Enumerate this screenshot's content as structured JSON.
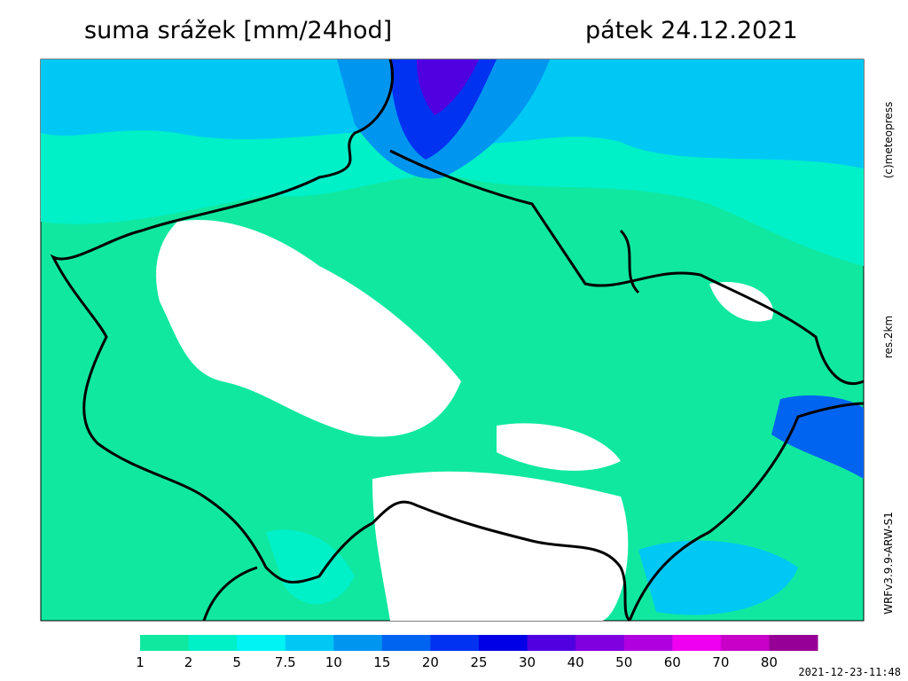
{
  "header": {
    "title": "suma srážek [mm/24hod]",
    "date": "pátek 24.12.2021"
  },
  "side": {
    "copyright": "(c)meteopress",
    "resolution": "res.2km",
    "model": "WRFv3.9.9-ARW-S1"
  },
  "legend": {
    "ticks": [
      1,
      2,
      5,
      7.5,
      10,
      15,
      20,
      25,
      30,
      40,
      50,
      60,
      70,
      80
    ],
    "colors": [
      "#10e8a0",
      "#00f0c8",
      "#00f4f4",
      "#00c8f4",
      "#0096f0",
      "#0064f0",
      "#0032f0",
      "#0000e6",
      "#5000e0",
      "#8000e0",
      "#b000e0",
      "#f000f0",
      "#c800c8",
      "#960096"
    ]
  },
  "footer": {
    "timestamp": "2021-12-23-11:48"
  }
}
